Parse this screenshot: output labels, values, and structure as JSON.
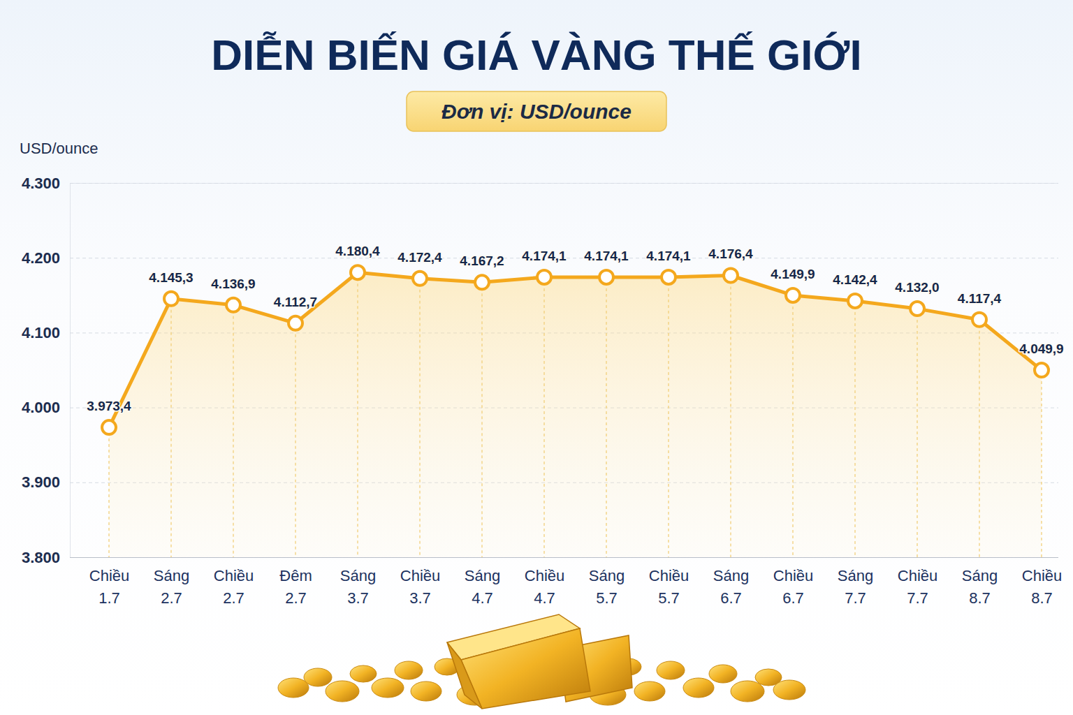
{
  "chart_data": {
    "type": "line",
    "title": "DIỄN BIẾN GIÁ VÀNG THẾ GIỚI",
    "subtitle": "Đơn vị: USD/ounce",
    "y_label": "USD/ounce",
    "categories": [
      "Chiều 1.7",
      "Sáng 2.7",
      "Chiều 2.7",
      "Đêm 2.7",
      "Sáng 3.7",
      "Chiều 3.7",
      "Sáng 4.7",
      "Chiều 4.7",
      "Sáng 5.7",
      "Chiều 5.7",
      "Sáng 6.7",
      "Chiều 6.7",
      "Sáng 7.7",
      "Chiều 7.7",
      "Sáng 8.7",
      "Chiều 8.7"
    ],
    "values": [
      3973.4,
      4145.3,
      4136.9,
      4112.7,
      4180.4,
      4172.4,
      4167.2,
      4174.1,
      4174.1,
      4174.1,
      4176.4,
      4149.9,
      4142.4,
      4132.0,
      4117.4,
      4049.9
    ],
    "value_labels": [
      "3.973,4",
      "4.145,3",
      "4.136,9",
      "4.112,7",
      "4.180,4",
      "4.172,4",
      "4.167,2",
      "4.174,1",
      "4.174,1",
      "4.174,1",
      "4.176,4",
      "4.149,9",
      "4.142,4",
      "4.132,0",
      "4.117,4",
      "4.049,9"
    ],
    "color": "#f4a81d",
    "ylim": [
      3800,
      4300
    ],
    "yticks": [
      {
        "value": 3800,
        "label": "3.800"
      },
      {
        "value": 3900,
        "label": "3.900"
      },
      {
        "value": 4000,
        "label": "4.000"
      },
      {
        "value": 4100,
        "label": "4.100"
      },
      {
        "value": 4200,
        "label": "4.200"
      },
      {
        "value": 4300,
        "label": "4.300"
      }
    ],
    "grid": true,
    "data_labels": true,
    "marker": "circle"
  }
}
